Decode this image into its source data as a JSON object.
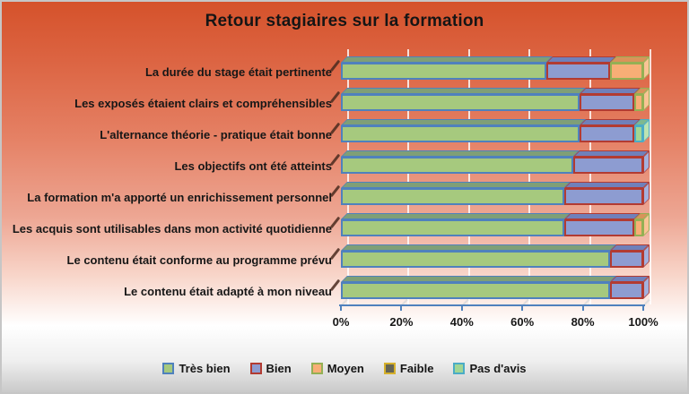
{
  "title": "Retour stagiaires sur la formation",
  "chart_data": {
    "type": "bar",
    "orientation": "horizontal",
    "stacked": true,
    "stacked_to": "100%",
    "title": "Retour stagiaires sur la formation",
    "categories": [
      "La durée du stage était pertinente",
      "Les exposés étaient clairs et compréhensibles",
      "L'alternance théorie - pratique était bonne",
      "Les objectifs ont été atteints",
      "La formation m'a apporté un enrichissement personnel",
      "Les acquis sont utilisables dans mon activité quotidienne",
      "Le contenu était conforme au programme prévu",
      "Le contenu était adapté à mon niveau"
    ],
    "series": [
      {
        "name": "Très bien",
        "values": [
          68,
          79,
          79,
          77,
          74,
          74,
          89,
          89
        ]
      },
      {
        "name": "Bien",
        "values": [
          21,
          18,
          18,
          23,
          26,
          23,
          11,
          11
        ]
      },
      {
        "name": "Moyen",
        "values": [
          11,
          3,
          0,
          0,
          0,
          3,
          0,
          0
        ]
      },
      {
        "name": "Faible",
        "values": [
          0,
          0,
          0,
          0,
          0,
          0,
          0,
          0
        ]
      },
      {
        "name": "Pas d'avis",
        "values": [
          0,
          0,
          3,
          0,
          0,
          0,
          0,
          0
        ]
      }
    ],
    "x_ticks": [
      "0%",
      "20%",
      "40%",
      "60%",
      "80%",
      "100%"
    ],
    "xlim": [
      0,
      100
    ],
    "grid": true,
    "legend_position": "bottom"
  },
  "legend": [
    {
      "label": "Très bien"
    },
    {
      "label": "Bien"
    },
    {
      "label": "Moyen"
    },
    {
      "label": "Faible"
    },
    {
      "label": "Pas d'avis"
    }
  ],
  "colors": {
    "Très bien": {
      "fill": "#a6c97e",
      "border": "#4f81bd",
      "top": "#7f9f77",
      "side": "#bcd89b"
    },
    "Bien": {
      "fill": "#8d9cd1",
      "border": "#b23b32",
      "top": "#7080ba",
      "side": "#a3b1de"
    },
    "Moyen": {
      "fill": "#f8ae76",
      "border": "#94b054",
      "top": "#d9935a",
      "side": "#f9c495"
    },
    "Faible": {
      "fill": "#646456",
      "border": "#d6b12c",
      "top": "#50503f",
      "side": "#7c7c6a"
    },
    "Pas d'avis": {
      "fill": "#a2d694",
      "border": "#4bacc6",
      "top": "#7fb98f",
      "side": "#bce4b2"
    },
    "axis": "#4f81bd",
    "background_top": "#d5522b",
    "background_bottom": "#c9c9c9",
    "gridline": "#ffffff",
    "text": "#151515"
  }
}
